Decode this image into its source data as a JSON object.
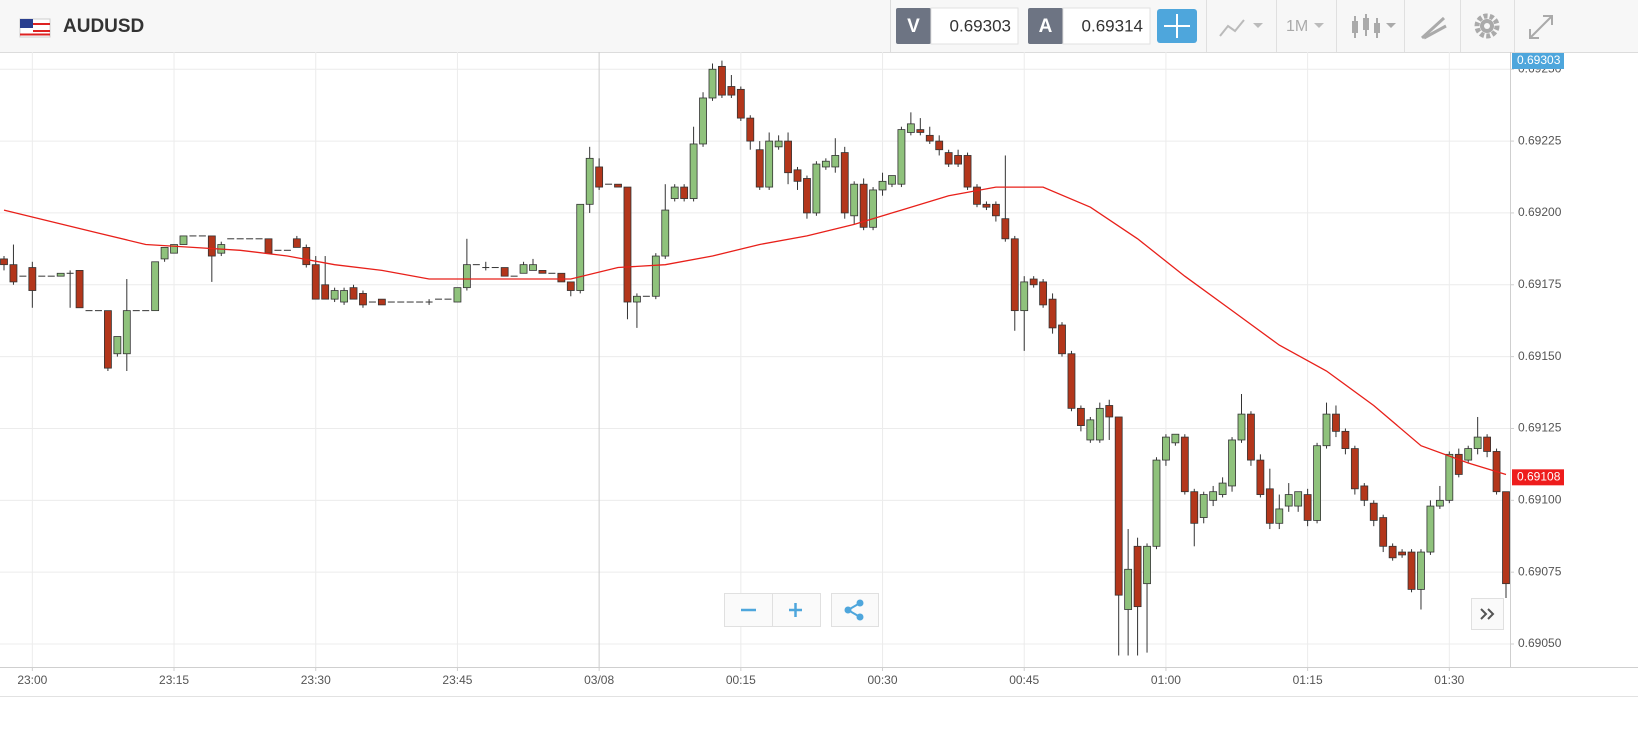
{
  "toolbar": {
    "symbol": "AUDUSD",
    "bid_label": "V",
    "bid": 0.69303,
    "ask_label": "A",
    "ask": 0.69314,
    "timeframe": "1M"
  },
  "chart_data": {
    "type": "candlestick",
    "x": [
      "22:57",
      "22:58",
      "22:59",
      "23:00",
      "23:01",
      "23:02",
      "23:03",
      "23:04",
      "23:05",
      "23:06",
      "23:07",
      "23:08",
      "23:09",
      "23:10",
      "23:11",
      "23:12",
      "23:13",
      "23:14",
      "23:15",
      "23:16",
      "23:17",
      "23:18",
      "23:19",
      "23:20",
      "23:21",
      "23:22",
      "23:23",
      "23:24",
      "23:25",
      "23:26",
      "23:27",
      "23:28",
      "23:29",
      "23:30",
      "23:31",
      "23:32",
      "23:33",
      "23:34",
      "23:35",
      "23:36",
      "23:37",
      "23:38",
      "23:39",
      "23:40",
      "23:41",
      "23:42",
      "23:43",
      "23:44",
      "23:45",
      "23:46",
      "23:47",
      "23:48",
      "23:49",
      "23:50",
      "23:51",
      "23:52",
      "23:53",
      "23:54",
      "23:55",
      "23:56",
      "23:57",
      "23:58",
      "23:59",
      "00:00",
      "00:01",
      "00:02",
      "00:03",
      "00:04",
      "00:05",
      "00:06",
      "00:07",
      "00:08",
      "00:09",
      "00:10",
      "00:11",
      "00:12",
      "00:13",
      "00:14",
      "00:15",
      "00:16",
      "00:17",
      "00:18",
      "00:19",
      "00:20",
      "00:21",
      "00:22",
      "00:23",
      "00:24",
      "00:25",
      "00:26",
      "00:27",
      "00:28",
      "00:29",
      "00:30",
      "00:31",
      "00:32",
      "00:33",
      "00:34",
      "00:35",
      "00:36",
      "00:37",
      "00:38",
      "00:39",
      "00:40",
      "00:41",
      "00:42",
      "00:43",
      "00:44",
      "00:45",
      "00:46",
      "00:47",
      "00:48",
      "00:49",
      "00:50",
      "00:51",
      "00:52",
      "00:53",
      "00:54",
      "00:55",
      "00:56",
      "00:57",
      "00:58",
      "00:59",
      "01:00",
      "01:01",
      "01:02",
      "01:03",
      "01:04",
      "01:05",
      "01:06",
      "01:07",
      "01:08",
      "01:09",
      "01:10",
      "01:11",
      "01:12",
      "01:13",
      "01:14",
      "01:15",
      "01:16",
      "01:17",
      "01:18",
      "01:19",
      "01:20",
      "01:21",
      "01:22",
      "01:23",
      "01:24",
      "01:25",
      "01:26",
      "01:27",
      "01:28",
      "01:29",
      "01:30",
      "01:31",
      "01:32",
      "01:33",
      "01:34",
      "01:35",
      "01:36"
    ],
    "open": [
      0.69184,
      0.69182,
      0.69178,
      0.69181,
      0.69178,
      0.69178,
      0.69178,
      0.69179,
      0.6918,
      0.69166,
      0.69166,
      0.69166,
      0.69151,
      0.69151,
      0.69166,
      0.69166,
      0.69166,
      0.69184,
      0.69186,
      0.69189,
      0.69192,
      0.69192,
      0.69192,
      0.69186,
      0.69191,
      0.69191,
      0.69191,
      0.69191,
      0.69191,
      0.69187,
      0.69187,
      0.69191,
      0.69188,
      0.69182,
      0.69175,
      0.6917,
      0.69169,
      0.69174,
      0.69172,
      0.69169,
      0.6917,
      0.69169,
      0.69169,
      0.69169,
      0.69169,
      0.69169,
      0.6917,
      0.6917,
      0.69169,
      0.69174,
      0.69182,
      0.69181,
      0.69181,
      0.69181,
      0.69178,
      0.69179,
      0.6918,
      0.6918,
      0.69179,
      0.69179,
      0.69176,
      0.69173,
      0.69203,
      0.69216,
      0.6921,
      0.6921,
      0.69209,
      0.69169,
      0.69171,
      0.69171,
      0.69185,
      0.69205,
      0.69209,
      0.69205,
      0.69224,
      0.6924,
      0.69251,
      0.69244,
      0.69243,
      0.69233,
      0.69222,
      0.69209,
      0.69223,
      0.69225,
      0.69215,
      0.69212,
      0.692,
      0.69216,
      0.69216,
      0.69221,
      0.69199,
      0.6921,
      0.69195,
      0.69208,
      0.6921,
      0.6921,
      0.69228,
      0.69229,
      0.69227,
      0.69225,
      0.69221,
      0.6922,
      0.6922,
      0.69209,
      0.69203,
      0.69203,
      0.69198,
      0.69191,
      0.69166,
      0.69177,
      0.69176,
      0.6917,
      0.69161,
      0.69151,
      0.69132,
      0.69121,
      0.69121,
      0.69133,
      0.69129,
      0.69062,
      0.69084,
      0.69071,
      0.69084,
      0.69114,
      0.6912,
      0.69122,
      0.69103,
      0.69094,
      0.691,
      0.69102,
      0.69105,
      0.69121,
      0.6913,
      0.69114,
      0.69104,
      0.69092,
      0.69098,
      0.69098,
      0.69102,
      0.69093,
      0.69119,
      0.6913,
      0.69124,
      0.69118,
      0.69105,
      0.69099,
      0.69094,
      0.69084,
      0.69082,
      0.69082,
      0.69069,
      0.69082,
      0.69098,
      0.691,
      0.69116,
      0.69114,
      0.69118,
      0.69122,
      0.69117,
      0.69103
    ],
    "high": [
      0.69185,
      0.69189,
      0.69178,
      0.69183,
      0.69178,
      0.69178,
      0.69179,
      0.6918,
      0.6918,
      0.69166,
      0.69166,
      0.69166,
      0.69157,
      0.69177,
      0.69166,
      0.69166,
      0.69183,
      0.69188,
      0.69189,
      0.69192,
      0.69192,
      0.69192,
      0.69192,
      0.6919,
      0.69191,
      0.69191,
      0.69191,
      0.69191,
      0.69191,
      0.69187,
      0.69187,
      0.69192,
      0.69189,
      0.69185,
      0.69185,
      0.69174,
      0.69174,
      0.69175,
      0.69173,
      0.69169,
      0.6917,
      0.69169,
      0.69169,
      0.69169,
      0.69169,
      0.6917,
      0.6917,
      0.6917,
      0.69174,
      0.69191,
      0.69182,
      0.69183,
      0.69181,
      0.69181,
      0.69178,
      0.69183,
      0.69184,
      0.6918,
      0.69179,
      0.69179,
      0.69176,
      0.69203,
      0.69223,
      0.69219,
      0.6921,
      0.6921,
      0.69209,
      0.69172,
      0.69171,
      0.69186,
      0.6921,
      0.6921,
      0.6921,
      0.6923,
      0.69242,
      0.69252,
      0.69253,
      0.69248,
      0.69244,
      0.69234,
      0.69225,
      0.69228,
      0.69227,
      0.69228,
      0.69216,
      0.69213,
      0.69218,
      0.69219,
      0.69226,
      0.69223,
      0.69211,
      0.69212,
      0.69209,
      0.69214,
      0.69213,
      0.6923,
      0.69235,
      0.69233,
      0.6923,
      0.69227,
      0.69222,
      0.69222,
      0.69221,
      0.6921,
      0.69204,
      0.69204,
      0.6922,
      0.69192,
      0.69178,
      0.69178,
      0.69177,
      0.69172,
      0.69162,
      0.69152,
      0.69133,
      0.69129,
      0.69134,
      0.69135,
      0.69129,
      0.6909,
      0.69087,
      0.69085,
      0.69115,
      0.69123,
      0.69123,
      0.69123,
      0.69104,
      0.69103,
      0.69105,
      0.69108,
      0.69122,
      0.69137,
      0.69131,
      0.69116,
      0.69111,
      0.69102,
      0.69106,
      0.69103,
      0.69104,
      0.6912,
      0.69134,
      0.69133,
      0.69125,
      0.69119,
      0.69106,
      0.691,
      0.69095,
      0.69085,
      0.69083,
      0.69083,
      0.69083,
      0.691,
      0.69105,
      0.69117,
      0.69118,
      0.69119,
      0.69129,
      0.69123,
      0.69118,
      0.69103
    ],
    "low": [
      0.6918,
      0.69175,
      0.69178,
      0.69167,
      0.69178,
      0.69178,
      0.69178,
      0.69167,
      0.69167,
      0.69166,
      0.69166,
      0.69145,
      0.6915,
      0.69145,
      0.69166,
      0.69166,
      0.69166,
      0.69183,
      0.69186,
      0.69189,
      0.69192,
      0.69192,
      0.69176,
      0.69185,
      0.69191,
      0.69191,
      0.69191,
      0.69191,
      0.69186,
      0.69187,
      0.69187,
      0.69188,
      0.69181,
      0.6917,
      0.6917,
      0.69169,
      0.69168,
      0.6917,
      0.69167,
      0.69169,
      0.69168,
      0.69169,
      0.69169,
      0.69169,
      0.69169,
      0.69168,
      0.6917,
      0.6917,
      0.69169,
      0.69173,
      0.69182,
      0.6918,
      0.69181,
      0.69178,
      0.69178,
      0.69179,
      0.6918,
      0.69179,
      0.69179,
      0.69176,
      0.69171,
      0.69172,
      0.692,
      0.69208,
      0.6921,
      0.69209,
      0.69163,
      0.6916,
      0.69171,
      0.6917,
      0.69184,
      0.69204,
      0.69204,
      0.69204,
      0.69223,
      0.69239,
      0.6924,
      0.6924,
      0.69232,
      0.69222,
      0.69208,
      0.69208,
      0.69222,
      0.6921,
      0.69208,
      0.69198,
      0.69199,
      0.69215,
      0.69214,
      0.69198,
      0.69196,
      0.69194,
      0.69194,
      0.69206,
      0.69209,
      0.69209,
      0.69227,
      0.69227,
      0.69224,
      0.6922,
      0.69216,
      0.69216,
      0.69208,
      0.69202,
      0.69201,
      0.69197,
      0.6919,
      0.69159,
      0.69152,
      0.69174,
      0.69167,
      0.69158,
      0.6915,
      0.69131,
      0.69124,
      0.6912,
      0.6912,
      0.69121,
      0.69046,
      0.69046,
      0.69046,
      0.69047,
      0.69083,
      0.69112,
      0.69119,
      0.69102,
      0.69084,
      0.69092,
      0.69098,
      0.69101,
      0.69103,
      0.6912,
      0.69112,
      0.69101,
      0.6909,
      0.6909,
      0.69096,
      0.69096,
      0.69091,
      0.69092,
      0.69118,
      0.69122,
      0.69116,
      0.69102,
      0.69098,
      0.69091,
      0.69082,
      0.69079,
      0.6908,
      0.69068,
      0.69062,
      0.69081,
      0.69097,
      0.69099,
      0.69108,
      0.69113,
      0.69116,
      0.69115,
      0.69102,
      0.69066
    ],
    "close": [
      0.69182,
      0.69176,
      0.69178,
      0.69173,
      0.69178,
      0.69178,
      0.69179,
      0.69179,
      0.69167,
      0.69166,
      0.69166,
      0.69146,
      0.69157,
      0.69166,
      0.69166,
      0.69166,
      0.69183,
      0.69188,
      0.69189,
      0.69192,
      0.69192,
      0.69192,
      0.69185,
      0.69189,
      0.69191,
      0.69191,
      0.69191,
      0.69191,
      0.69186,
      0.69187,
      0.69187,
      0.69188,
      0.69182,
      0.6917,
      0.6917,
      0.69173,
      0.69173,
      0.6917,
      0.69168,
      0.69169,
      0.69168,
      0.69169,
      0.69169,
      0.69169,
      0.69169,
      0.69169,
      0.6917,
      0.6917,
      0.69174,
      0.69182,
      0.69182,
      0.69181,
      0.69181,
      0.69178,
      0.69178,
      0.69182,
      0.69182,
      0.69179,
      0.69179,
      0.69176,
      0.69173,
      0.69203,
      0.69219,
      0.69209,
      0.6921,
      0.69209,
      0.69169,
      0.69171,
      0.69171,
      0.69185,
      0.69201,
      0.69209,
      0.69205,
      0.69224,
      0.6924,
      0.6925,
      0.69241,
      0.69241,
      0.69233,
      0.69225,
      0.69209,
      0.69225,
      0.69225,
      0.69214,
      0.69211,
      0.692,
      0.69217,
      0.69218,
      0.6922,
      0.692,
      0.6921,
      0.69195,
      0.69208,
      0.69211,
      0.69213,
      0.69229,
      0.69231,
      0.69228,
      0.69225,
      0.69222,
      0.69217,
      0.69217,
      0.69209,
      0.69203,
      0.69202,
      0.69199,
      0.69191,
      0.69166,
      0.69176,
      0.69175,
      0.69168,
      0.6916,
      0.69151,
      0.69132,
      0.69126,
      0.69128,
      0.69132,
      0.69129,
      0.69067,
      0.69076,
      0.69063,
      0.69084,
      0.69114,
      0.69122,
      0.69123,
      0.69103,
      0.69092,
      0.69102,
      0.69103,
      0.69106,
      0.69121,
      0.6913,
      0.69114,
      0.69102,
      0.69092,
      0.69097,
      0.69102,
      0.69103,
      0.69093,
      0.69119,
      0.6913,
      0.69124,
      0.69118,
      0.69104,
      0.691,
      0.69093,
      0.69084,
      0.6908,
      0.69081,
      0.69069,
      0.69082,
      0.69098,
      0.691,
      0.69116,
      0.69109,
      0.69118,
      0.69122,
      0.69117,
      0.69103,
      0.69071
    ],
    "up_color": "#8fc27c",
    "down_color": "#b3361b",
    "line": {
      "x": [
        "22:57",
        "23:02",
        "23:07",
        "23:12",
        "23:17",
        "23:22",
        "23:27",
        "23:32",
        "23:37",
        "23:42",
        "23:47",
        "23:52",
        "23:57",
        "00:02",
        "00:07",
        "00:12",
        "00:17",
        "00:22",
        "00:27",
        "00:32",
        "00:37",
        "00:42",
        "00:47",
        "00:52",
        "00:57",
        "01:02",
        "01:07",
        "01:12",
        "01:17",
        "01:22",
        "01:27",
        "01:32",
        "01:36"
      ],
      "values": [
        0.69201,
        0.69197,
        0.69193,
        0.69189,
        0.69188,
        0.69187,
        0.69185,
        0.69182,
        0.6918,
        0.69177,
        0.69177,
        0.69177,
        0.69177,
        0.69181,
        0.69182,
        0.69185,
        0.69189,
        0.69192,
        0.69196,
        0.69201,
        0.69206,
        0.69209,
        0.69209,
        0.69202,
        0.69191,
        0.69178,
        0.69166,
        0.69154,
        0.69145,
        0.69133,
        0.69119,
        0.69113,
        0.69109
      ],
      "color": "#e8201a"
    },
    "ylim": [
      0.69042,
      0.69256
    ],
    "yticks": [
      {
        "value": 0.6905,
        "label": "0.69050"
      },
      {
        "value": 0.69075,
        "label": "0.69075"
      },
      {
        "value": 0.691,
        "label": "0.69100"
      },
      {
        "value": 0.69125,
        "label": "0.69125"
      },
      {
        "value": 0.6915,
        "label": "0.69150"
      },
      {
        "value": 0.69175,
        "label": "0.69175"
      },
      {
        "value": 0.692,
        "label": "0.69200"
      },
      {
        "value": 0.69225,
        "label": "0.69225"
      },
      {
        "value": 0.6925,
        "label": "0.69250"
      }
    ],
    "xticks": [
      "23:00",
      "23:15",
      "23:30",
      "23:45",
      {
        "value": "00:00",
        "label": "03/08"
      },
      "00:15",
      "00:30",
      "00:45",
      "01:00",
      "01:15",
      "01:30"
    ],
    "grid": true,
    "price_labels": [
      {
        "value": 0.69303,
        "color": "#4ea6dc"
      },
      {
        "value": 0.69108,
        "color": "#ee1c1c"
      }
    ]
  }
}
